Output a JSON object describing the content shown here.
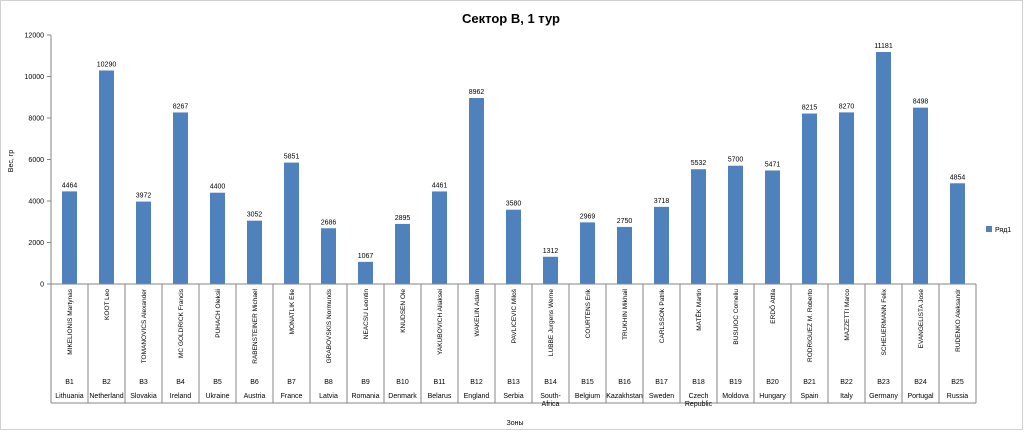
{
  "chart_data": {
    "type": "bar",
    "title": "Сектор B, 1 тур",
    "xlabel": "Зоны",
    "ylabel": "Вес, гр",
    "ylim": [
      0,
      12000
    ],
    "yticks": [
      0,
      2000,
      4000,
      6000,
      8000,
      10000,
      12000
    ],
    "grid": false,
    "legend_position": "right",
    "colors": {
      "bar": "#4f81bd",
      "axis": "#868686",
      "text": "#000000",
      "frame": "#d0d0d0"
    },
    "categories": [
      {
        "name": "MIKELIONIS Martynas",
        "sector": "B1",
        "country": [
          "Lithuania"
        ]
      },
      {
        "name": "KOOT Leo",
        "sector": "B2",
        "country": [
          "Netherland"
        ]
      },
      {
        "name": "TOMANOVICS Alexander",
        "sector": "B3",
        "country": [
          "Slovakia"
        ]
      },
      {
        "name": "MC GOLDRICK Francis",
        "sector": "B4",
        "country": [
          "Ireland"
        ]
      },
      {
        "name": "PUHACH Oleksii",
        "sector": "B5",
        "country": [
          "Ukraine"
        ]
      },
      {
        "name": "RABENSTEINER Michael",
        "sector": "B6",
        "country": [
          "Austria"
        ]
      },
      {
        "name": "MONATLIK Elie",
        "sector": "B7",
        "country": [
          "France"
        ]
      },
      {
        "name": "GRABOVSKIS Normunds",
        "sector": "B8",
        "country": [
          "Latvia"
        ]
      },
      {
        "name": "NEACSU Leontin",
        "sector": "B9",
        "country": [
          "Romania"
        ]
      },
      {
        "name": "KNUDSEN Ole",
        "sector": "B10",
        "country": [
          "Denmark"
        ]
      },
      {
        "name": "YAKUBOVICH Aliaksei",
        "sector": "B11",
        "country": [
          "Belarus"
        ]
      },
      {
        "name": "WAKELIN Adam",
        "sector": "B12",
        "country": [
          "England"
        ]
      },
      {
        "name": "PAVLICEVIC Miloš",
        "sector": "B13",
        "country": [
          "Serbia"
        ]
      },
      {
        "name": "LUBBE Jurgens Werne",
        "sector": "B14",
        "country": [
          "South-",
          "Africa"
        ]
      },
      {
        "name": "COURTENS Erik",
        "sector": "B15",
        "country": [
          "Belgium"
        ]
      },
      {
        "name": "TRUKHIN Mikhail",
        "sector": "B16",
        "country": [
          "Kazakhstan"
        ]
      },
      {
        "name": "CARLSSON Patrik",
        "sector": "B17",
        "country": [
          "Sweden"
        ]
      },
      {
        "name": "MATĚK Martin",
        "sector": "B18",
        "country": [
          "Czech",
          "Republic"
        ]
      },
      {
        "name": "BUSUIOC Corneliu",
        "sector": "B19",
        "country": [
          "Moldova"
        ]
      },
      {
        "name": "ERDŐ Attila",
        "sector": "B20",
        "country": [
          "Hungary"
        ]
      },
      {
        "name": "RODRIGUEZ M. Roberto",
        "sector": "B21",
        "country": [
          "Spain"
        ]
      },
      {
        "name": "MAZZETTI Marco",
        "sector": "B22",
        "country": [
          "Italy"
        ]
      },
      {
        "name": "SCHEUERMANN Felix",
        "sector": "B23",
        "country": [
          "Germany"
        ]
      },
      {
        "name": "EVANGELISTA José",
        "sector": "B24",
        "country": [
          "Portugal"
        ]
      },
      {
        "name": "RUDENKO Aleksandr",
        "sector": "B25",
        "country": [
          "Russia"
        ]
      }
    ],
    "series": [
      {
        "name": "Ряд1",
        "values": [
          4464,
          10290,
          3972,
          8267,
          4400,
          3052,
          5851,
          2686,
          1067,
          2895,
          4461,
          8962,
          3580,
          1312,
          2969,
          2750,
          3718,
          5532,
          5700,
          5471,
          8215,
          8270,
          11181,
          8498,
          4854
        ]
      }
    ]
  }
}
